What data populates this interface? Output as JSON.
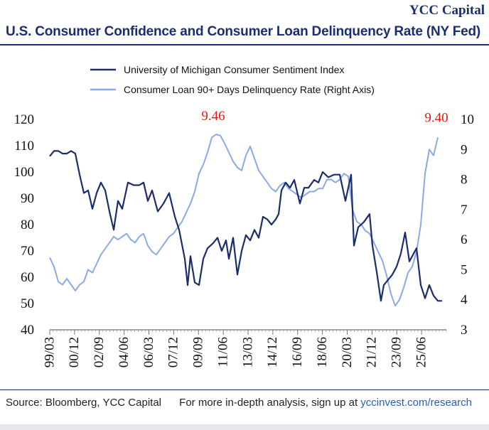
{
  "header": {
    "brand": "YCC Capital",
    "title": "U.S. Consumer Confidence and Consumer Loan Delinquency Rate (NY Fed)"
  },
  "footer": {
    "source": "Source: Bloomberg, YCC Capital",
    "cta_text": "For more in-depth analysis,  sign up at ",
    "cta_link": "yccinvest.com/research"
  },
  "colors": {
    "sentiment": "#1b2d6b",
    "delinquency": "#8aaae6",
    "annotation": "#e8180c"
  },
  "chart_data": {
    "type": "line",
    "legend_position": "top-center",
    "grid": false,
    "x_ticks": [
      "99/03",
      "00/12",
      "02/09",
      "04/06",
      "06/03",
      "07/12",
      "09/09",
      "11/06",
      "13/03",
      "14/12",
      "16/09",
      "18/06",
      "20/03",
      "21/12",
      "23/09",
      "25/06"
    ],
    "xlim": [
      1999.0,
      2026.9
    ],
    "ylim_left": [
      40,
      120
    ],
    "ylim_right": [
      3,
      10
    ],
    "y_ticks_left": [
      "40",
      "50",
      "60",
      "70",
      "80",
      "90",
      "100",
      "110",
      "120"
    ],
    "y_ticks_right": [
      "3",
      "4",
      "5",
      "6",
      "7",
      "8",
      "9",
      "10"
    ],
    "annotations": [
      {
        "text": "9.46",
        "x": 2010.5,
        "y": 9.46
      },
      {
        "text": "9.40",
        "x": 2026.2,
        "y": 9.4
      }
    ],
    "series": [
      {
        "name": "University of Michigan Consumer Sentiment Index",
        "axis": "left",
        "x": [
          1999.0,
          1999.3,
          1999.6,
          1999.9,
          2000.2,
          2000.5,
          2000.8,
          2001.1,
          2001.4,
          2001.7,
          2002.0,
          2002.3,
          2002.6,
          2002.9,
          2003.2,
          2003.5,
          2003.8,
          2004.1,
          2004.5,
          2004.9,
          2005.3,
          2005.6,
          2005.9,
          2006.2,
          2006.6,
          2007.0,
          2007.4,
          2007.8,
          2008.1,
          2008.5,
          2008.7,
          2008.9,
          2009.2,
          2009.5,
          2009.8,
          2010.1,
          2010.5,
          2010.8,
          2011.1,
          2011.4,
          2011.6,
          2011.9,
          2012.2,
          2012.5,
          2012.8,
          2013.1,
          2013.4,
          2013.7,
          2014.0,
          2014.3,
          2014.6,
          2014.9,
          2015.1,
          2015.3,
          2015.6,
          2015.9,
          2016.2,
          2016.6,
          2016.9,
          2017.2,
          2017.6,
          2017.9,
          2018.2,
          2018.6,
          2019.0,
          2019.4,
          2019.8,
          2020.2,
          2020.4,
          2020.7,
          2021.1,
          2021.5,
          2021.7,
          2022.0,
          2022.3,
          2022.5,
          2022.8,
          2023.1,
          2023.4,
          2023.7,
          2024.0,
          2024.3,
          2024.5,
          2024.8,
          2025.1,
          2025.4,
          2025.7,
          2026.0,
          2026.3,
          2026.6
        ],
        "values": [
          106,
          108,
          108,
          107,
          107,
          108,
          107,
          99,
          92,
          93,
          86,
          92,
          96,
          93,
          85,
          78,
          89,
          86,
          96,
          95,
          95,
          96,
          89,
          93,
          85,
          88,
          92,
          83,
          78,
          67,
          57,
          68,
          58,
          57,
          67,
          71,
          73,
          75,
          70,
          74,
          67,
          75,
          61,
          70,
          76,
          74,
          78,
          75,
          83,
          82,
          80,
          82,
          84,
          93,
          96,
          94,
          97,
          88,
          94,
          94,
          97,
          96,
          100,
          98,
          99,
          99,
          89,
          99,
          72,
          79,
          81,
          84,
          72,
          62,
          51,
          57,
          59,
          61,
          64,
          69,
          77,
          66,
          68,
          71,
          57,
          52,
          57,
          53,
          51,
          51
        ],
        "values_note": "shortened"
      },
      {
        "name": "Consumer Loan 90+ Days Delinquency Rate (Right Axis)",
        "axis": "right",
        "x": [
          1999.0,
          1999.3,
          1999.6,
          1999.9,
          2000.2,
          2000.5,
          2000.8,
          2001.1,
          2001.4,
          2001.7,
          2002.0,
          2002.3,
          2002.6,
          2002.9,
          2003.2,
          2003.5,
          2003.8,
          2004.1,
          2004.4,
          2004.7,
          2005.0,
          2005.3,
          2005.6,
          2005.9,
          2006.2,
          2006.5,
          2006.8,
          2007.1,
          2007.4,
          2007.7,
          2008.0,
          2008.3,
          2008.6,
          2008.9,
          2009.2,
          2009.5,
          2009.8,
          2010.1,
          2010.4,
          2010.7,
          2011.0,
          2011.3,
          2011.6,
          2011.9,
          2012.2,
          2012.5,
          2012.8,
          2013.1,
          2013.4,
          2013.7,
          2014.0,
          2014.3,
          2014.6,
          2014.9,
          2015.2,
          2015.5,
          2015.8,
          2016.1,
          2016.4,
          2016.7,
          2017.0,
          2017.3,
          2017.6,
          2017.9,
          2018.2,
          2018.5,
          2018.8,
          2019.1,
          2019.4,
          2019.7,
          2020.0,
          2020.3,
          2020.6,
          2020.9,
          2021.2,
          2021.5,
          2021.8,
          2022.1,
          2022.4,
          2022.7,
          2023.0,
          2023.3,
          2023.6,
          2023.9,
          2024.2,
          2024.5,
          2024.8,
          2025.1,
          2025.4,
          2025.7,
          2026.0,
          2026.3
        ],
        "values": [
          5.4,
          5.1,
          4.6,
          4.5,
          4.7,
          4.5,
          4.3,
          4.5,
          4.6,
          5.0,
          4.9,
          5.2,
          5.5,
          5.7,
          5.9,
          6.1,
          6.0,
          6.1,
          6.2,
          6.0,
          5.9,
          6.1,
          6.2,
          5.8,
          5.6,
          5.5,
          5.7,
          5.9,
          6.1,
          6.2,
          6.4,
          6.6,
          6.9,
          7.2,
          7.6,
          8.2,
          8.5,
          8.9,
          9.4,
          9.5,
          9.46,
          9.2,
          8.9,
          8.6,
          8.4,
          8.3,
          8.8,
          9.1,
          8.7,
          8.3,
          8.1,
          7.9,
          7.7,
          7.6,
          7.8,
          7.9,
          7.7,
          7.6,
          7.5,
          7.4,
          7.5,
          7.6,
          7.6,
          7.7,
          7.7,
          8.0,
          8.0,
          7.9,
          8.0,
          8.2,
          8.1,
          7.0,
          6.6,
          6.5,
          6.3,
          6.2,
          5.9,
          5.6,
          5.3,
          4.8,
          4.2,
          3.8,
          4.0,
          4.4,
          4.9,
          5.1,
          5.6,
          6.5,
          8.2,
          9.0,
          8.8,
          9.4
        ]
      }
    ]
  }
}
